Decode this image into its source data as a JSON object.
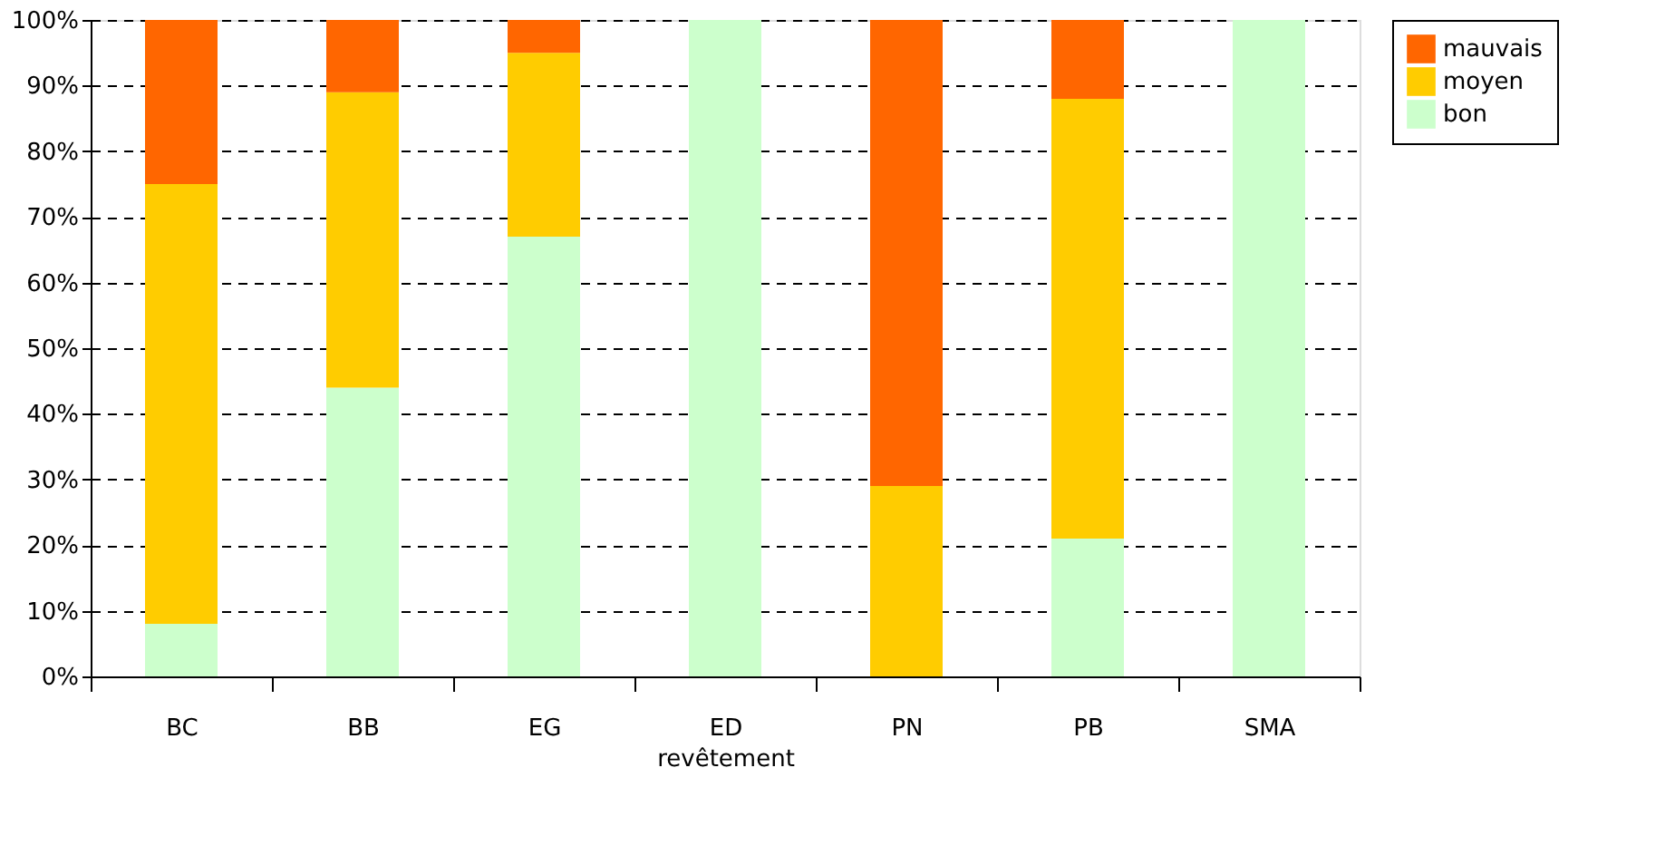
{
  "chart_data": {
    "type": "bar",
    "stacked": true,
    "xlabel": "revêtement",
    "categories": [
      "BC",
      "BB",
      "EG",
      "ED",
      "PN",
      "PB",
      "SMA"
    ],
    "series": [
      {
        "name": "bon",
        "color": "#ccffcc",
        "values": [
          8,
          44,
          67,
          100,
          0,
          21,
          100
        ]
      },
      {
        "name": "moyen",
        "color": "#ffcc00",
        "values": [
          67,
          45,
          28,
          0,
          29,
          67,
          0
        ]
      },
      {
        "name": "mauvais",
        "color": "#ff6600",
        "values": [
          25,
          11,
          5,
          0,
          71,
          12,
          0
        ]
      }
    ],
    "ylim": [
      0,
      100
    ],
    "yticks": [
      {
        "value": 0,
        "label": "0%"
      },
      {
        "value": 10,
        "label": "10%"
      },
      {
        "value": 20,
        "label": "20%"
      },
      {
        "value": 30,
        "label": "30%"
      },
      {
        "value": 40,
        "label": "40%"
      },
      {
        "value": 50,
        "label": "50%"
      },
      {
        "value": 60,
        "label": "60%"
      },
      {
        "value": 70,
        "label": "70%"
      },
      {
        "value": 80,
        "label": "80%"
      },
      {
        "value": 90,
        "label": "90%"
      },
      {
        "value": 100,
        "label": "100%"
      }
    ],
    "grid": "y",
    "legend": "right"
  }
}
